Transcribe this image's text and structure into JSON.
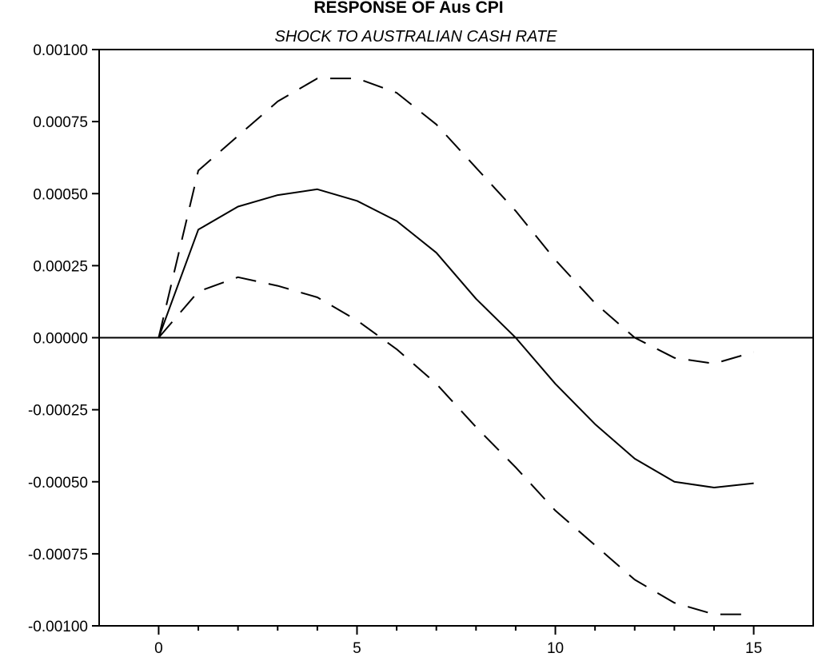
{
  "chart_data": {
    "type": "line",
    "title": "RESPONSE OF Aus CPI",
    "subtitle": "SHOCK TO AUSTRALIAN CASH RATE",
    "xlabel": "",
    "ylabel": "",
    "xlim": [
      -1.5,
      16.5
    ],
    "ylim": [
      -0.001,
      0.001
    ],
    "x_ticks": [
      0,
      5,
      10,
      15
    ],
    "x_minor_ticks": [
      1,
      2,
      3,
      4,
      6,
      7,
      8,
      9,
      11,
      12,
      13,
      14
    ],
    "x_tick_labels": [
      "0",
      "5",
      "10",
      "15"
    ],
    "y_ticks": [
      0.001,
      0.00075,
      0.0005,
      0.00025,
      0,
      -0.00025,
      -0.0005,
      -0.00075,
      -0.001
    ],
    "y_tick_labels": [
      "0.00100",
      "0.00075",
      "0.00050",
      "0.00025",
      "0.00000",
      "-0.00025",
      "-0.00050",
      "-0.00075",
      "-0.00100"
    ],
    "grid": false,
    "zero_line": true,
    "legend": "none",
    "x": [
      0,
      1,
      2,
      3,
      4,
      5,
      6,
      7,
      8,
      9,
      10,
      11,
      12,
      13,
      14,
      15
    ],
    "series": [
      {
        "style": "dashed",
        "values": [
          0,
          0.00058,
          0.0007,
          0.00082,
          0.0009,
          0.0009,
          0.00085,
          0.00074,
          0.00059,
          0.00044,
          0.00027,
          0.00012,
          0.0,
          -7e-05,
          -9e-05,
          -5e-05
        ]
      },
      {
        "style": "solid",
        "values": [
          0,
          0.000375,
          0.000455,
          0.000495,
          0.000515,
          0.000475,
          0.000405,
          0.000295,
          0.000135,
          0.0,
          -0.00016,
          -0.0003,
          -0.00042,
          -0.0005,
          -0.00052,
          -0.000505
        ]
      },
      {
        "style": "dashed",
        "values": [
          0,
          0.00016,
          0.00021,
          0.00018,
          0.00014,
          6e-05,
          -4e-05,
          -0.00016,
          -0.00031,
          -0.00045,
          -0.0006,
          -0.00072,
          -0.00084,
          -0.00092,
          -0.00096,
          -0.00096
        ]
      }
    ]
  }
}
